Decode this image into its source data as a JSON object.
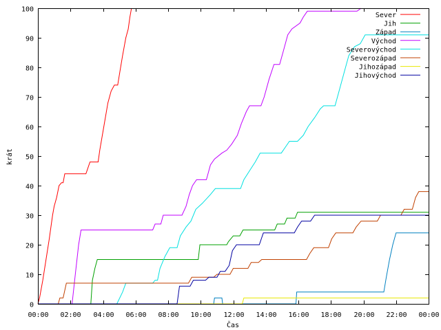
{
  "chart_data": {
    "type": "line",
    "xlabel": "Čas",
    "ylabel": "krát",
    "xlim": [
      0,
      24
    ],
    "ylim": [
      0,
      100
    ],
    "x_ticks": [
      {
        "value": 0,
        "label": "00:00"
      },
      {
        "value": 2,
        "label": "02:00"
      },
      {
        "value": 4,
        "label": "04:00"
      },
      {
        "value": 6,
        "label": "06:00"
      },
      {
        "value": 8,
        "label": "08:00"
      },
      {
        "value": 10,
        "label": "10:00"
      },
      {
        "value": 12,
        "label": "12:00"
      },
      {
        "value": 14,
        "label": "14:00"
      },
      {
        "value": 16,
        "label": "16:00"
      },
      {
        "value": 18,
        "label": "18:00"
      },
      {
        "value": 20,
        "label": "20:00"
      },
      {
        "value": 22,
        "label": "22:00"
      },
      {
        "value": 24,
        "label": "00:00"
      }
    ],
    "y_ticks": [
      0,
      10,
      20,
      30,
      40,
      50,
      60,
      70,
      80,
      90,
      100
    ],
    "grid": false,
    "legend_position": "top-right",
    "series": [
      {
        "name": "Sever",
        "color": "#ff0000",
        "points": [
          [
            0.0,
            0
          ],
          [
            0.1,
            2
          ],
          [
            0.3,
            8
          ],
          [
            0.5,
            15
          ],
          [
            0.7,
            22
          ],
          [
            0.9,
            30
          ],
          [
            1.0,
            33
          ],
          [
            1.15,
            36
          ],
          [
            1.3,
            40
          ],
          [
            1.45,
            41
          ],
          [
            1.55,
            41
          ],
          [
            1.65,
            44
          ],
          [
            2.95,
            44
          ],
          [
            3.2,
            48
          ],
          [
            3.7,
            48
          ],
          [
            3.8,
            52
          ],
          [
            4.05,
            60
          ],
          [
            4.3,
            68
          ],
          [
            4.5,
            72
          ],
          [
            4.7,
            74
          ],
          [
            4.9,
            74
          ],
          [
            5.05,
            79
          ],
          [
            5.2,
            84
          ],
          [
            5.4,
            90
          ],
          [
            5.55,
            93
          ],
          [
            5.65,
            97
          ],
          [
            5.75,
            100
          ]
        ]
      },
      {
        "name": "Jih",
        "color": "#00a000",
        "points": [
          [
            0.0,
            0
          ],
          [
            3.25,
            0
          ],
          [
            3.35,
            8
          ],
          [
            3.5,
            12
          ],
          [
            3.65,
            15
          ],
          [
            9.85,
            15
          ],
          [
            9.95,
            20
          ],
          [
            11.6,
            20
          ],
          [
            11.7,
            21
          ],
          [
            12.0,
            23
          ],
          [
            12.4,
            23
          ],
          [
            12.6,
            25
          ],
          [
            14.55,
            25
          ],
          [
            14.7,
            27
          ],
          [
            15.15,
            27
          ],
          [
            15.3,
            29
          ],
          [
            15.8,
            29
          ],
          [
            15.95,
            31
          ],
          [
            24.0,
            31
          ]
        ]
      },
      {
        "name": "Západ",
        "color": "#0080c0",
        "points": [
          [
            0.0,
            0
          ],
          [
            10.8,
            0
          ],
          [
            10.85,
            2
          ],
          [
            11.3,
            2
          ],
          [
            11.35,
            0
          ],
          [
            15.85,
            0
          ],
          [
            15.9,
            4
          ],
          [
            21.25,
            4
          ],
          [
            21.4,
            9
          ],
          [
            21.6,
            15
          ],
          [
            21.8,
            20
          ],
          [
            22.0,
            24
          ],
          [
            24.0,
            24
          ]
        ]
      },
      {
        "name": "Východ",
        "color": "#c000ff",
        "points": [
          [
            0.0,
            0
          ],
          [
            2.1,
            0
          ],
          [
            2.3,
            10
          ],
          [
            2.5,
            20
          ],
          [
            2.65,
            25
          ],
          [
            7.05,
            25
          ],
          [
            7.2,
            27
          ],
          [
            7.55,
            27
          ],
          [
            7.7,
            30
          ],
          [
            8.85,
            30
          ],
          [
            9.1,
            33
          ],
          [
            9.3,
            37
          ],
          [
            9.5,
            40
          ],
          [
            9.75,
            42
          ],
          [
            10.35,
            42
          ],
          [
            10.6,
            47
          ],
          [
            10.85,
            49
          ],
          [
            11.3,
            51
          ],
          [
            11.6,
            52
          ],
          [
            11.9,
            54
          ],
          [
            12.25,
            57
          ],
          [
            12.5,
            61
          ],
          [
            12.8,
            65
          ],
          [
            13.0,
            67
          ],
          [
            13.7,
            67
          ],
          [
            13.9,
            70
          ],
          [
            14.2,
            76
          ],
          [
            14.5,
            81
          ],
          [
            14.85,
            81
          ],
          [
            15.05,
            85
          ],
          [
            15.35,
            91
          ],
          [
            15.6,
            93
          ],
          [
            16.1,
            95
          ],
          [
            16.3,
            97
          ],
          [
            16.55,
            99
          ],
          [
            19.6,
            99
          ],
          [
            19.85,
            100
          ]
        ]
      },
      {
        "name": "Severovýchod",
        "color": "#00e0e0",
        "points": [
          [
            0.0,
            0
          ],
          [
            4.85,
            0
          ],
          [
            5.2,
            4
          ],
          [
            5.4,
            7
          ],
          [
            7.05,
            7
          ],
          [
            7.2,
            8
          ],
          [
            7.35,
            8
          ],
          [
            7.5,
            12
          ],
          [
            7.8,
            16
          ],
          [
            8.1,
            19
          ],
          [
            8.55,
            19
          ],
          [
            8.75,
            23
          ],
          [
            9.1,
            26
          ],
          [
            9.4,
            28
          ],
          [
            9.7,
            32
          ],
          [
            10.1,
            34
          ],
          [
            10.6,
            37
          ],
          [
            10.9,
            39
          ],
          [
            12.45,
            39
          ],
          [
            12.65,
            42
          ],
          [
            13.0,
            45
          ],
          [
            13.35,
            48
          ],
          [
            13.65,
            51
          ],
          [
            14.95,
            51
          ],
          [
            15.2,
            53
          ],
          [
            15.45,
            55
          ],
          [
            15.95,
            55
          ],
          [
            16.3,
            57
          ],
          [
            16.6,
            60
          ],
          [
            17.0,
            63
          ],
          [
            17.35,
            66
          ],
          [
            17.55,
            67
          ],
          [
            18.25,
            67
          ],
          [
            18.5,
            72
          ],
          [
            18.8,
            78
          ],
          [
            19.1,
            84
          ],
          [
            19.45,
            87
          ],
          [
            19.8,
            88
          ],
          [
            20.1,
            91
          ],
          [
            24.0,
            91
          ]
        ]
      },
      {
        "name": "Severozápad",
        "color": "#c04000",
        "points": [
          [
            0.0,
            0
          ],
          [
            1.25,
            0
          ],
          [
            1.35,
            2
          ],
          [
            1.55,
            2
          ],
          [
            1.75,
            7
          ],
          [
            9.25,
            7
          ],
          [
            9.45,
            9
          ],
          [
            10.8,
            9
          ],
          [
            11.0,
            10
          ],
          [
            11.8,
            10
          ],
          [
            12.0,
            12
          ],
          [
            12.9,
            12
          ],
          [
            13.1,
            14
          ],
          [
            13.55,
            14
          ],
          [
            13.75,
            15
          ],
          [
            16.5,
            15
          ],
          [
            16.7,
            17
          ],
          [
            16.95,
            19
          ],
          [
            17.85,
            19
          ],
          [
            18.05,
            22
          ],
          [
            18.3,
            24
          ],
          [
            19.35,
            24
          ],
          [
            19.55,
            26
          ],
          [
            19.85,
            28
          ],
          [
            20.85,
            28
          ],
          [
            21.05,
            30
          ],
          [
            22.3,
            30
          ],
          [
            22.5,
            32
          ],
          [
            23.0,
            32
          ],
          [
            23.2,
            36
          ],
          [
            23.4,
            38
          ],
          [
            24.0,
            38
          ]
        ]
      },
      {
        "name": "Jihozápad",
        "color": "#e8e800",
        "points": [
          [
            0.0,
            0
          ],
          [
            12.55,
            0
          ],
          [
            12.65,
            2
          ],
          [
            24.0,
            2
          ]
        ]
      },
      {
        "name": "Jihovýchod",
        "color": "#0000a0",
        "points": [
          [
            0.0,
            0
          ],
          [
            8.55,
            0
          ],
          [
            8.7,
            6
          ],
          [
            9.35,
            6
          ],
          [
            9.55,
            8
          ],
          [
            10.3,
            8
          ],
          [
            10.5,
            9
          ],
          [
            11.0,
            9
          ],
          [
            11.2,
            11
          ],
          [
            11.5,
            11
          ],
          [
            11.75,
            13
          ],
          [
            11.95,
            18
          ],
          [
            12.2,
            20
          ],
          [
            13.6,
            20
          ],
          [
            13.85,
            24
          ],
          [
            15.75,
            24
          ],
          [
            15.95,
            26
          ],
          [
            16.2,
            28
          ],
          [
            16.75,
            28
          ],
          [
            17.0,
            30
          ],
          [
            24.0,
            30
          ]
        ]
      }
    ]
  }
}
